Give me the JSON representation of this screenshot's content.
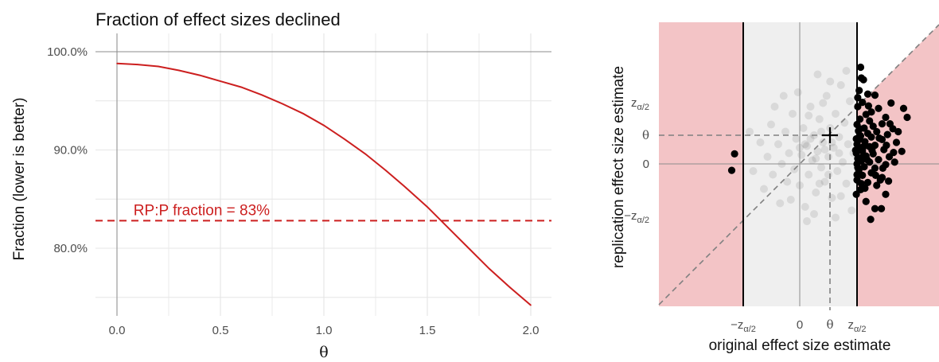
{
  "colors": {
    "accent": "#cc1f1f",
    "reject_region": "#f3c4c6",
    "band": "#efefef",
    "grid": "#e6e6e6",
    "axis": "#8c8c8c",
    "point": "#000000"
  },
  "chart_data": [
    {
      "type": "line",
      "title": "Fraction of effect sizes declined",
      "xlabel": "θ",
      "ylabel": "Fraction (lower is better)",
      "xlim": [
        -0.1,
        2.1
      ],
      "ylim": [
        0.73,
        1.02
      ],
      "x_ticks": [
        0.0,
        0.5,
        1.0,
        1.5,
        2.0
      ],
      "x_tick_labels": [
        "0.0",
        "0.5",
        "1.0",
        "1.5",
        "2.0"
      ],
      "y_ticks": [
        0.8,
        0.9,
        1.0
      ],
      "y_tick_labels": [
        "80.0%",
        "90.0%",
        "100.0%"
      ],
      "grid": true,
      "series": [
        {
          "x": [
            0.0,
            0.1,
            0.2,
            0.3,
            0.4,
            0.5,
            0.6,
            0.7,
            0.8,
            0.9,
            1.0,
            1.1,
            1.2,
            1.3,
            1.4,
            1.5,
            1.6,
            1.7,
            1.8,
            1.9,
            2.0
          ],
          "y": [
            0.988,
            0.987,
            0.985,
            0.981,
            0.976,
            0.97,
            0.964,
            0.956,
            0.947,
            0.937,
            0.925,
            0.911,
            0.896,
            0.879,
            0.861,
            0.842,
            0.821,
            0.8,
            0.779,
            0.76,
            0.742
          ]
        }
      ],
      "reference_line": {
        "y": 0.828,
        "style": "dashed",
        "label": "RP:P fraction = 83%"
      }
    },
    {
      "type": "scatter",
      "xlabel": "original effect size estimate",
      "ylabel": "replication effect size estimate",
      "x_tick_labels": [
        "−z_{α/2}",
        "0",
        "θ",
        "z_{α/2}"
      ],
      "y_tick_labels": [
        "z_{α/2}",
        "θ",
        "0",
        "−z_{α/2}"
      ],
      "regions": [
        "shaded rejection regions above and below the diagonal outside ±z_{α/2}",
        "grey band between ±z_{α/2}"
      ],
      "marker_label": "+",
      "series": [
        {
          "role": "significant originals (black)",
          "points": [
            [
              -1.82,
              0.28
            ],
            [
              -1.9,
              -0.18
            ],
            [
              1.7,
              2.7
            ],
            [
              1.78,
              2.35
            ],
            [
              1.66,
              2.05
            ],
            [
              1.9,
              1.95
            ],
            [
              2.1,
              1.92
            ],
            [
              1.75,
              1.72
            ],
            [
              1.62,
              1.6
            ],
            [
              2.2,
              1.55
            ],
            [
              2.0,
              1.45
            ],
            [
              1.85,
              1.38
            ],
            [
              2.4,
              1.3
            ],
            [
              1.68,
              1.25
            ],
            [
              1.95,
              1.2
            ],
            [
              2.3,
              1.12
            ],
            [
              1.6,
              1.1
            ],
            [
              2.05,
              1.05
            ],
            [
              1.8,
              1.0
            ],
            [
              2.6,
              0.98
            ],
            [
              1.64,
              0.92
            ],
            [
              2.15,
              0.9
            ],
            [
              1.9,
              0.85
            ],
            [
              2.45,
              0.82
            ],
            [
              1.7,
              0.78
            ],
            [
              2.0,
              0.75
            ],
            [
              1.58,
              0.7
            ],
            [
              2.3,
              0.68
            ],
            [
              1.82,
              0.62
            ],
            [
              2.7,
              0.6
            ],
            [
              1.6,
              0.55
            ],
            [
              2.1,
              0.52
            ],
            [
              1.95,
              0.48
            ],
            [
              1.65,
              0.42
            ],
            [
              2.35,
              0.4
            ],
            [
              1.75,
              0.36
            ],
            [
              1.58,
              0.3
            ],
            [
              2.05,
              0.28
            ],
            [
              1.85,
              0.22
            ],
            [
              2.5,
              0.2
            ],
            [
              1.62,
              0.15
            ],
            [
              2.2,
              0.12
            ],
            [
              1.72,
              0.08
            ],
            [
              1.95,
              0.05
            ],
            [
              1.6,
              0.0
            ],
            [
              2.4,
              -0.02
            ],
            [
              1.8,
              -0.08
            ],
            [
              2.1,
              -0.12
            ],
            [
              1.65,
              -0.18
            ],
            [
              2.0,
              -0.25
            ],
            [
              1.75,
              -0.32
            ],
            [
              2.3,
              -0.38
            ],
            [
              1.6,
              -0.45
            ],
            [
              1.9,
              -0.52
            ],
            [
              2.15,
              -0.6
            ],
            [
              1.7,
              -0.72
            ],
            [
              2.4,
              -0.85
            ],
            [
              1.85,
              -1.05
            ],
            [
              2.1,
              -1.25
            ],
            [
              1.98,
              -1.55
            ],
            [
              2.28,
              -1.25
            ],
            [
              1.62,
              1.85
            ],
            [
              1.72,
              2.4
            ],
            [
              2.9,
              1.55
            ],
            [
              3.0,
              1.3
            ],
            [
              2.75,
              0.9
            ],
            [
              2.55,
              1.7
            ],
            [
              2.85,
              0.35
            ],
            [
              2.65,
              0.05
            ],
            [
              2.25,
              -0.45
            ],
            [
              1.58,
              -0.85
            ],
            [
              1.68,
              0.98
            ],
            [
              1.78,
              0.48
            ],
            [
              1.88,
              0.12
            ],
            [
              1.6,
              -0.3
            ],
            [
              1.66,
              0.68
            ],
            [
              1.72,
              -0.55
            ],
            [
              1.56,
              0.38
            ],
            [
              1.62,
              -0.1
            ],
            [
              1.74,
              0.18
            ],
            [
              2.02,
              0.38
            ],
            [
              2.12,
              -0.32
            ],
            [
              2.22,
              0.72
            ],
            [
              2.42,
              0.52
            ],
            [
              1.92,
              1.62
            ],
            [
              2.52,
              1.12
            ],
            [
              2.62,
              0.32
            ],
            [
              2.32,
              -0.12
            ],
            [
              1.82,
              -0.68
            ],
            [
              2.48,
              -0.48
            ]
          ]
        },
        {
          "role": "non-significant originals (grey)",
          "points": [
            [
              -1.3,
              -0.2
            ],
            [
              -1.1,
              0.6
            ],
            [
              -1.0,
              -0.7
            ],
            [
              -0.9,
              0.2
            ],
            [
              -0.8,
              1.1
            ],
            [
              -0.75,
              -0.3
            ],
            [
              -0.6,
              0.55
            ],
            [
              -0.55,
              -1.1
            ],
            [
              -0.5,
              0.0
            ],
            [
              -0.4,
              0.9
            ],
            [
              -0.35,
              -0.5
            ],
            [
              -0.3,
              0.3
            ],
            [
              -0.2,
              1.4
            ],
            [
              -0.15,
              -0.15
            ],
            [
              -0.1,
              0.7
            ],
            [
              0.0,
              -0.6
            ],
            [
              0.05,
              0.25
            ],
            [
              0.1,
              1.0
            ],
            [
              0.15,
              -1.2
            ],
            [
              0.2,
              0.5
            ],
            [
              0.25,
              -0.3
            ],
            [
              0.3,
              1.6
            ],
            [
              0.35,
              0.1
            ],
            [
              0.4,
              0.8
            ],
            [
              0.45,
              -0.8
            ],
            [
              0.5,
              0.35
            ],
            [
              0.55,
              1.25
            ],
            [
              0.6,
              -0.1
            ],
            [
              0.65,
              0.6
            ],
            [
              0.7,
              -0.5
            ],
            [
              0.75,
              1.9
            ],
            [
              0.8,
              0.2
            ],
            [
              0.85,
              1.0
            ],
            [
              0.9,
              -0.95
            ],
            [
              0.95,
              0.45
            ],
            [
              1.0,
              1.4
            ],
            [
              1.05,
              -0.2
            ],
            [
              1.1,
              0.75
            ],
            [
              1.15,
              2.2
            ],
            [
              1.2,
              0.05
            ],
            [
              1.25,
              1.15
            ],
            [
              1.3,
              -0.55
            ],
            [
              1.35,
              0.55
            ],
            [
              1.4,
              1.75
            ],
            [
              1.45,
              -1.3
            ],
            [
              1.5,
              0.3
            ],
            [
              -0.05,
              2.0
            ],
            [
              0.5,
              2.5
            ],
            [
              -0.7,
              1.6
            ],
            [
              0.2,
              -1.6
            ],
            [
              1.0,
              -1.5
            ],
            [
              -0.25,
              -1.0
            ],
            [
              0.65,
              1.7
            ],
            [
              1.3,
              2.6
            ],
            [
              0.85,
              2.3
            ],
            [
              -1.4,
              0.9
            ],
            [
              -0.45,
              1.9
            ],
            [
              1.15,
              -0.9
            ],
            [
              0.4,
              -1.4
            ],
            [
              0.0,
              0.45
            ],
            [
              0.3,
              0.7
            ],
            [
              0.6,
              0.9
            ],
            [
              0.7,
              0.4
            ],
            [
              0.9,
              0.6
            ],
            [
              0.45,
              0.15
            ],
            [
              0.15,
              0.55
            ],
            [
              0.8,
              -0.3
            ],
            [
              1.1,
              0.3
            ],
            [
              0.25,
              1.35
            ],
            [
              0.55,
              -0.55
            ]
          ]
        }
      ]
    }
  ]
}
